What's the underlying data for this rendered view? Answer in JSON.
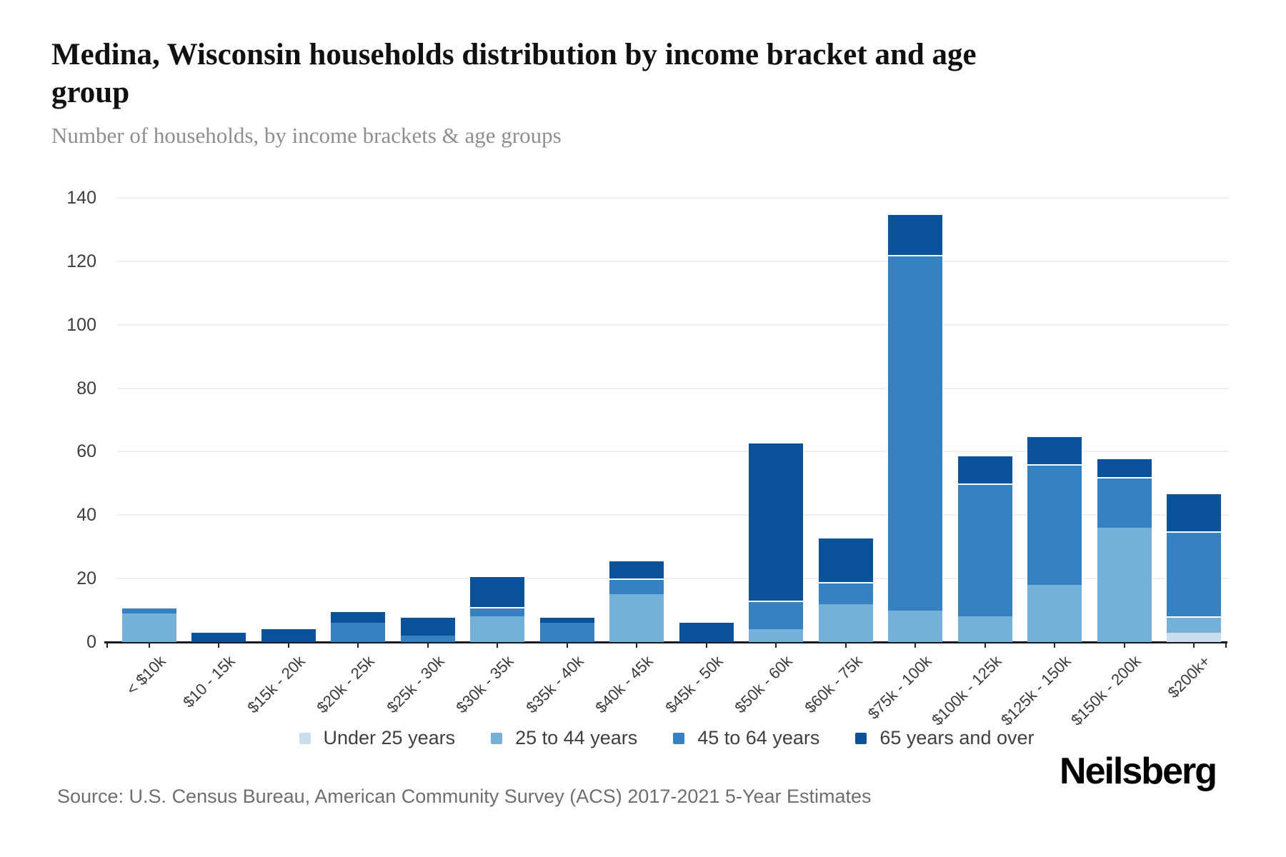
{
  "header": {
    "title": "Medina, Wisconsin households distribution by income bracket and age group",
    "subtitle": "Number of households, by income brackets & age groups"
  },
  "footer": {
    "source": "Source: U.S. Census Bureau, American Community Survey (ACS) 2017-2021 5-Year Estimates",
    "brand": "Neilsberg"
  },
  "colors": {
    "under_25": "#c9ddee",
    "25_to_44": "#74b0d8",
    "45_to_64": "#3581c1",
    "65_and_over": "#0a539b",
    "axis_line": "#15181c",
    "gridline": "#f0f0f0",
    "text_dark": "#111111",
    "text_gray": "#8e8e8e"
  },
  "chart_data": {
    "type": "bar",
    "stacked": true,
    "title": "Medina, Wisconsin households distribution by income bracket and age group",
    "subtitle": "Number of households, by income brackets & age groups",
    "xlabel": "",
    "ylabel": "",
    "ylim": [
      0,
      140
    ],
    "yticks": [
      0,
      20,
      40,
      60,
      80,
      100,
      120,
      140
    ],
    "grid": "horizontal",
    "legend_position": "bottom-center",
    "categories": [
      "< $10k",
      "$10 - 15k",
      "$15k - 20k",
      "$20k - 25k",
      "$25k - 30k",
      "$30k - 35k",
      "$35k - 40k",
      "$40k - 45k",
      "$45k - 50k",
      "$50k - 60k",
      "$60k - 75k",
      "$75k - 100k",
      "$100k - 125k",
      "$125k - 150k",
      "$150k - 200k",
      "$200k+"
    ],
    "series": [
      {
        "name": "Under 25 years",
        "color": "#c9ddee",
        "values": [
          0,
          0,
          0,
          0,
          0,
          0,
          0,
          0,
          0,
          0,
          0,
          0,
          0,
          0,
          0,
          3
        ]
      },
      {
        "name": "25 to 44 years",
        "color": "#74b0d8",
        "values": [
          9,
          0,
          0,
          0,
          0,
          8,
          0,
          15,
          0,
          4,
          12,
          10,
          8,
          18,
          36,
          5
        ]
      },
      {
        "name": "45 to 64 years",
        "color": "#3581c1",
        "values": [
          2,
          0,
          0,
          6,
          2,
          3,
          6,
          5,
          0,
          9,
          7,
          112,
          42,
          38,
          16,
          27
        ]
      },
      {
        "name": "65 years and over",
        "color": "#0a539b",
        "values": [
          0,
          3,
          4,
          4,
          6,
          10,
          2,
          6,
          6,
          50,
          14,
          13,
          9,
          9,
          6,
          12
        ]
      }
    ],
    "totals": [
      11,
      3,
      4,
      10,
      8,
      21,
      8,
      26,
      6,
      63,
      33,
      135,
      59,
      65,
      58,
      47
    ]
  }
}
